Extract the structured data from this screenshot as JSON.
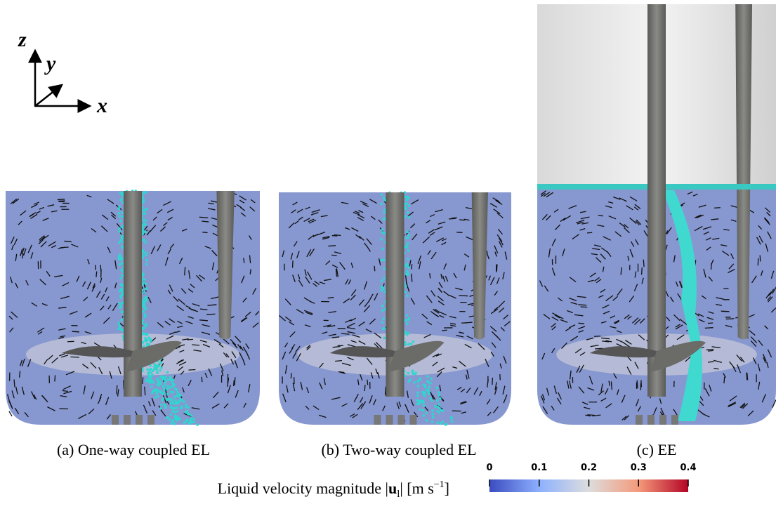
{
  "axes": {
    "z": "z",
    "y": "y",
    "x": "x"
  },
  "panels": [
    {
      "caption": "(a) One-way coupled EL"
    },
    {
      "caption": "(b) Two-way coupled EL"
    },
    {
      "caption": "(c) EE"
    }
  ],
  "colorbar": {
    "label_parts": [
      "Liquid velocity magnitude |",
      "u",
      "l",
      "| [m s",
      "−1",
      "]"
    ],
    "lim": [
      0,
      0.4
    ],
    "ticks": [
      0,
      0.1,
      0.2,
      0.3,
      0.4
    ]
  }
}
